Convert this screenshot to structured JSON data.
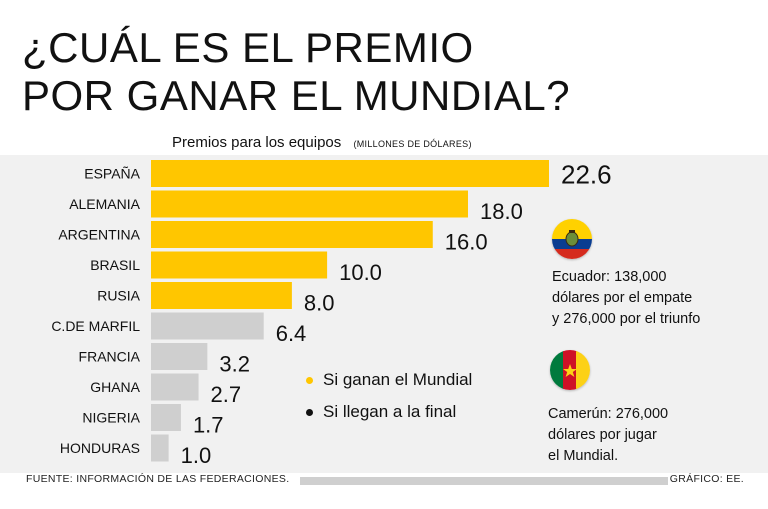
{
  "title_line1": "¿CUÁL ES EL PREMIO",
  "title_line2": "POR GANAR EL MUNDIAL?",
  "subtitle": "Premios para los equipos",
  "unit": "(MILLONES DE DÓLARES)",
  "colors": {
    "winner": "#ffc600",
    "finalist": "#cfcfcf",
    "legend_final_dot": "#111111"
  },
  "chart_data": {
    "type": "bar",
    "orientation": "horizontal",
    "title": "Premios para los equipos",
    "ylabel": "(MILLONES DE DÓLARES)",
    "categories": [
      "ESPAÑA",
      "ALEMANIA",
      "ARGENTINA",
      "BRASIL",
      "RUSIA",
      "C.DE MARFIL",
      "FRANCIA",
      "GHANA",
      "NIGERIA",
      "HONDURAS"
    ],
    "values": [
      22.6,
      18.0,
      16.0,
      10.0,
      8.0,
      6.4,
      3.2,
      2.7,
      1.7,
      1.0
    ],
    "value_labels": [
      "22.6",
      "18.0",
      "16.0",
      "10.0",
      "8.0",
      "6.4",
      "3.2",
      "2.7",
      "1.7",
      "1.0"
    ],
    "series_by_bar": [
      "win",
      "win",
      "win",
      "win",
      "win",
      "final",
      "final",
      "final",
      "final",
      "final"
    ],
    "legend": [
      {
        "key": "win",
        "label": "Si ganan el Mundial"
      },
      {
        "key": "final",
        "label": "Si llegan a la final"
      }
    ],
    "xlim": [
      0,
      22.6
    ]
  },
  "notes": {
    "ecuador": {
      "flag_icon": "ecuador-flag-icon",
      "lines": [
        "Ecuador: 138,000",
        "dólares por el empate",
        "y 276,000 por el triunfo"
      ]
    },
    "cameroon": {
      "flag_icon": "cameroon-flag-icon",
      "lines": [
        "Camerún: 276,000",
        "dólares por jugar",
        "el Mundial."
      ]
    }
  },
  "footer": {
    "source": "FUENTE: INFORMACIÓN DE LAS FEDERACIONES.",
    "credit": "GRÁFICO: EE."
  }
}
